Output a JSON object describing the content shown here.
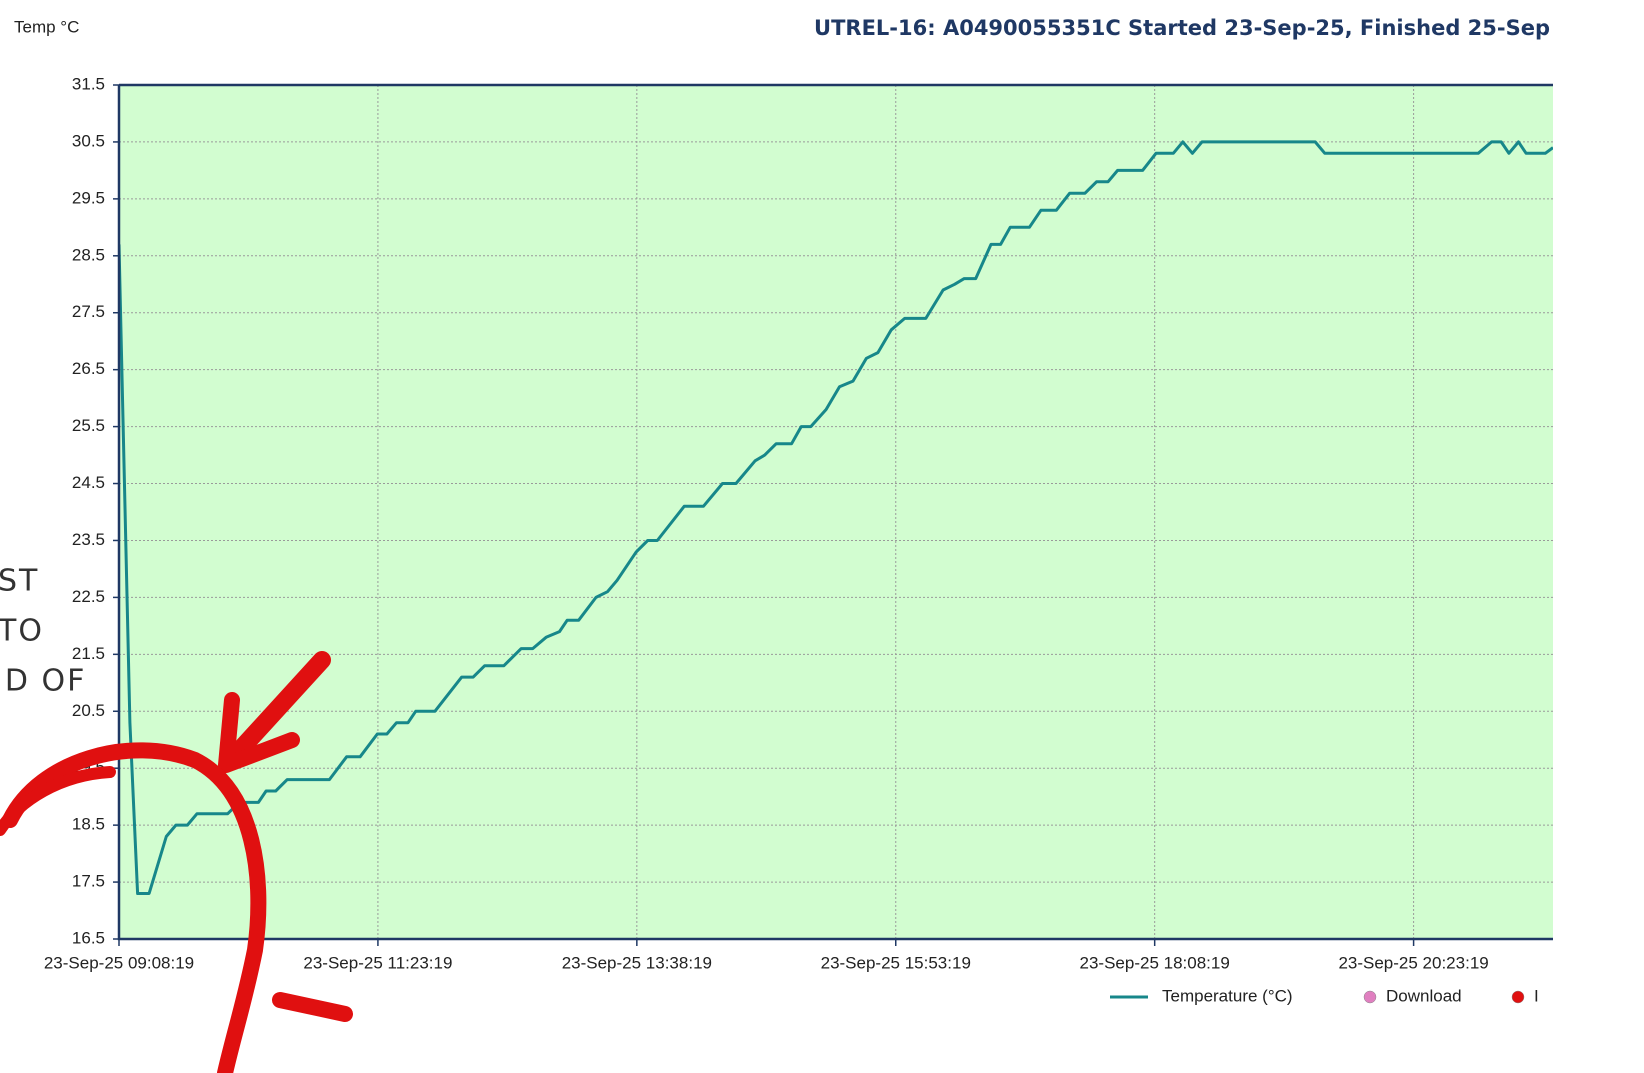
{
  "chart_data": {
    "type": "line",
    "title": "UTREL-16: A0490055351C Started 23-Sep-25, Finished 25-Sep",
    "y_label": "Temp °C",
    "annotations": [
      "ST",
      "TO",
      "ID OF"
    ],
    "ylim": [
      16.5,
      31.5
    ],
    "yticks": [
      16.5,
      17.5,
      18.5,
      19.5,
      20.5,
      21.5,
      22.5,
      23.5,
      24.5,
      25.5,
      26.5,
      27.5,
      28.5,
      29.5,
      30.5,
      31.5
    ],
    "xlim": [
      "2025-09-23T09:08:19",
      "2025-09-23T21:36:00"
    ],
    "xticks": [
      {
        "value": "2025-09-23T09:08:19",
        "label": "23-Sep-25 09:08:19"
      },
      {
        "value": "2025-09-23T11:23:19",
        "label": "23-Sep-25 11:23:19"
      },
      {
        "value": "2025-09-23T13:38:19",
        "label": "23-Sep-25 13:38:19"
      },
      {
        "value": "2025-09-23T15:53:19",
        "label": "23-Sep-25 15:53:19"
      },
      {
        "value": "2025-09-23T18:08:19",
        "label": "23-Sep-25 18:08:19"
      },
      {
        "value": "2025-09-23T20:23:19",
        "label": "23-Sep-25 20:23:19"
      }
    ],
    "grid": true,
    "x": [
      "2025-09-23T09:08:19",
      "2025-09-23T09:14:00",
      "2025-09-23T09:18:00",
      "2025-09-23T09:24:00",
      "2025-09-23T09:33:00",
      "2025-09-23T09:38:00",
      "2025-09-23T09:44:00",
      "2025-09-23T09:49:00",
      "2025-09-23T10:05:00",
      "2025-09-23T10:11:00",
      "2025-09-23T10:21:00",
      "2025-09-23T10:25:00",
      "2025-09-23T10:30:00",
      "2025-09-23T10:36:00",
      "2025-09-23T10:58:00",
      "2025-09-23T11:07:00",
      "2025-09-23T11:14:00",
      "2025-09-23T11:23:00",
      "2025-09-23T11:28:00",
      "2025-09-23T11:33:00",
      "2025-09-23T11:39:00",
      "2025-09-23T11:43:00",
      "2025-09-23T11:53:00",
      "2025-09-23T12:07:00",
      "2025-09-23T12:13:00",
      "2025-09-23T12:19:00",
      "2025-09-23T12:29:00",
      "2025-09-23T12:38:00",
      "2025-09-23T12:44:00",
      "2025-09-23T12:51:00",
      "2025-09-23T12:58:00",
      "2025-09-23T13:02:00",
      "2025-09-23T13:08:00",
      "2025-09-23T13:17:00",
      "2025-09-23T13:23:00",
      "2025-09-23T13:28:00",
      "2025-09-23T13:38:00",
      "2025-09-23T13:44:00",
      "2025-09-23T13:49:00",
      "2025-09-23T14:03:00",
      "2025-09-23T14:13:00",
      "2025-09-23T14:23:00",
      "2025-09-23T14:30:00",
      "2025-09-23T14:40:00",
      "2025-09-23T14:45:00",
      "2025-09-23T14:51:00",
      "2025-09-23T14:59:00",
      "2025-09-23T15:04:00",
      "2025-09-23T15:09:00",
      "2025-09-23T15:17:00",
      "2025-09-23T15:24:00",
      "2025-09-23T15:31:00",
      "2025-09-23T15:38:00",
      "2025-09-23T15:44:00",
      "2025-09-23T15:51:00",
      "2025-09-23T15:58:00",
      "2025-09-23T16:09:00",
      "2025-09-23T16:18:00",
      "2025-09-23T16:24:00",
      "2025-09-23T16:29:00",
      "2025-09-23T16:35:00",
      "2025-09-23T16:43:00",
      "2025-09-23T16:48:00",
      "2025-09-23T16:53:00",
      "2025-09-23T17:03:00",
      "2025-09-23T17:09:00",
      "2025-09-23T17:17:00",
      "2025-09-23T17:24:00",
      "2025-09-23T17:32:00",
      "2025-09-23T17:38:00",
      "2025-09-23T17:44:00",
      "2025-09-23T17:49:00",
      "2025-09-23T18:02:00",
      "2025-09-23T18:09:00",
      "2025-09-23T18:18:00",
      "2025-09-23T18:23:00",
      "2025-09-23T18:28:00",
      "2025-09-23T18:33:00",
      "2025-09-23T19:32:00",
      "2025-09-23T19:37:00",
      "2025-09-23T20:57:00",
      "2025-09-23T21:04:00",
      "2025-09-23T21:09:00",
      "2025-09-23T21:13:00",
      "2025-09-23T21:18:00",
      "2025-09-23T21:22:00",
      "2025-09-23T21:32:00",
      "2025-09-23T21:36:00"
    ],
    "series": [
      {
        "name": "Temperature (°C)",
        "color": "#17878a",
        "values": [
          28.7,
          20.3,
          17.3,
          17.3,
          18.3,
          18.5,
          18.5,
          18.7,
          18.7,
          18.9,
          18.9,
          19.1,
          19.1,
          19.3,
          19.3,
          19.7,
          19.7,
          20.1,
          20.1,
          20.3,
          20.3,
          20.5,
          20.5,
          21.1,
          21.1,
          21.3,
          21.3,
          21.6,
          21.6,
          21.8,
          21.9,
          22.1,
          22.1,
          22.5,
          22.6,
          22.8,
          23.3,
          23.5,
          23.5,
          24.1,
          24.1,
          24.5,
          24.5,
          24.9,
          25.0,
          25.2,
          25.2,
          25.5,
          25.5,
          25.8,
          26.2,
          26.3,
          26.7,
          26.8,
          27.2,
          27.4,
          27.4,
          27.9,
          28.0,
          28.1,
          28.1,
          28.7,
          28.7,
          29.0,
          29.0,
          29.3,
          29.3,
          29.6,
          29.6,
          29.8,
          29.8,
          30.0,
          30.0,
          30.3,
          30.3,
          30.5,
          30.3,
          30.5,
          30.5,
          30.3,
          30.3,
          30.5,
          30.5,
          30.3,
          30.5,
          30.3,
          30.3,
          30.4
        ]
      }
    ],
    "legend_extra": [
      {
        "name": "Download",
        "color": "#e07fc0"
      },
      {
        "name": "I",
        "color": "#e01010"
      }
    ]
  }
}
